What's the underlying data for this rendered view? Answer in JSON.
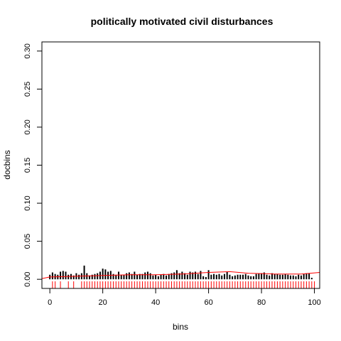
{
  "chart_data": {
    "type": "bar",
    "title": "politically motivated civil disturbances",
    "xlabel": "bins",
    "ylabel": "docbins",
    "xlim": [
      -3,
      102
    ],
    "ylim": [
      -0.012,
      0.312
    ],
    "xticks": [
      0,
      20,
      40,
      60,
      80,
      100
    ],
    "yticks": [
      0.0,
      0.05,
      0.1,
      0.15,
      0.2,
      0.25,
      0.3
    ],
    "xtick_labels": [
      "0",
      "20",
      "40",
      "60",
      "80",
      "100"
    ],
    "ytick_labels": [
      "0.00",
      "0.05",
      "0.10",
      "0.15",
      "0.20",
      "0.25",
      "0.30"
    ],
    "grid": false,
    "legend": "none",
    "colors": {
      "bars": "#000000",
      "curve": "#ff0000",
      "rug": "#ff0000",
      "frame": "#000000"
    },
    "series": [
      {
        "type": "bar",
        "x": [
          0,
          1,
          2,
          3,
          4,
          5,
          6,
          7,
          8,
          9,
          10,
          11,
          12,
          13,
          14,
          15,
          16,
          17,
          18,
          19,
          20,
          21,
          22,
          23,
          24,
          25,
          26,
          27,
          28,
          29,
          30,
          31,
          32,
          33,
          34,
          35,
          36,
          37,
          38,
          39,
          40,
          41,
          42,
          43,
          44,
          45,
          46,
          47,
          48,
          49,
          50,
          51,
          52,
          53,
          54,
          55,
          56,
          57,
          58,
          59,
          60,
          61,
          62,
          63,
          64,
          65,
          66,
          67,
          68,
          69,
          70,
          71,
          72,
          73,
          74,
          75,
          76,
          77,
          78,
          79,
          80,
          81,
          82,
          83,
          84,
          85,
          86,
          87,
          88,
          89,
          90,
          91,
          92,
          93,
          94,
          95,
          96,
          97,
          98,
          99
        ],
        "values": [
          0.006,
          0.009,
          0.007,
          0.006,
          0.01,
          0.011,
          0.01,
          0.006,
          0.007,
          0.005,
          0.008,
          0.006,
          0.008,
          0.018,
          0.008,
          0.005,
          0.006,
          0.007,
          0.008,
          0.01,
          0.014,
          0.013,
          0.01,
          0.011,
          0.007,
          0.006,
          0.01,
          0.006,
          0.006,
          0.008,
          0.009,
          0.007,
          0.01,
          0.006,
          0.007,
          0.007,
          0.009,
          0.01,
          0.008,
          0.005,
          0.006,
          0.004,
          0.006,
          0.007,
          0.005,
          0.007,
          0.008,
          0.009,
          0.012,
          0.008,
          0.01,
          0.008,
          0.006,
          0.01,
          0.009,
          0.01,
          0.007,
          0.011,
          0.004,
          0.003,
          0.012,
          0.006,
          0.007,
          0.006,
          0.007,
          0.005,
          0.007,
          0.01,
          0.006,
          0.004,
          0.005,
          0.006,
          0.006,
          0.006,
          0.007,
          0.005,
          0.004,
          0.004,
          0.007,
          0.008,
          0.008,
          0.009,
          0.006,
          0.005,
          0.008,
          0.007,
          0.007,
          0.006,
          0.006,
          0.007,
          0.006,
          0.005,
          0.005,
          0.004,
          0.006,
          0.005,
          0.007,
          0.008,
          0.008,
          0.002
        ]
      },
      {
        "type": "line",
        "x": [
          -3,
          0,
          10,
          20,
          30,
          40,
          50,
          60,
          68,
          75,
          85,
          95,
          102
        ],
        "values": [
          0.001,
          0.003,
          0.004,
          0.005,
          0.006,
          0.006,
          0.007,
          0.009,
          0.01,
          0.008,
          0.007,
          0.007,
          0.009
        ]
      },
      {
        "type": "rug",
        "x": [
          1,
          2,
          4,
          7,
          9,
          12,
          13,
          14,
          15,
          16,
          17,
          18,
          19,
          20,
          21,
          22,
          23,
          24,
          25,
          26,
          27,
          28,
          29,
          30,
          31,
          32,
          33,
          34,
          35,
          36,
          37,
          38,
          39,
          40,
          41,
          42,
          43,
          44,
          45,
          46,
          47,
          48,
          49,
          50,
          51,
          52,
          53,
          54,
          55,
          56,
          57,
          58,
          59,
          60,
          61,
          62,
          63,
          64,
          65,
          66,
          67,
          68,
          69,
          70,
          71,
          72,
          73,
          74,
          75,
          76,
          77,
          78,
          79,
          80,
          81,
          82,
          83,
          84,
          85,
          86,
          87,
          88,
          89,
          90,
          91,
          92,
          93,
          94,
          95,
          96,
          97,
          98,
          99,
          100
        ]
      }
    ]
  }
}
